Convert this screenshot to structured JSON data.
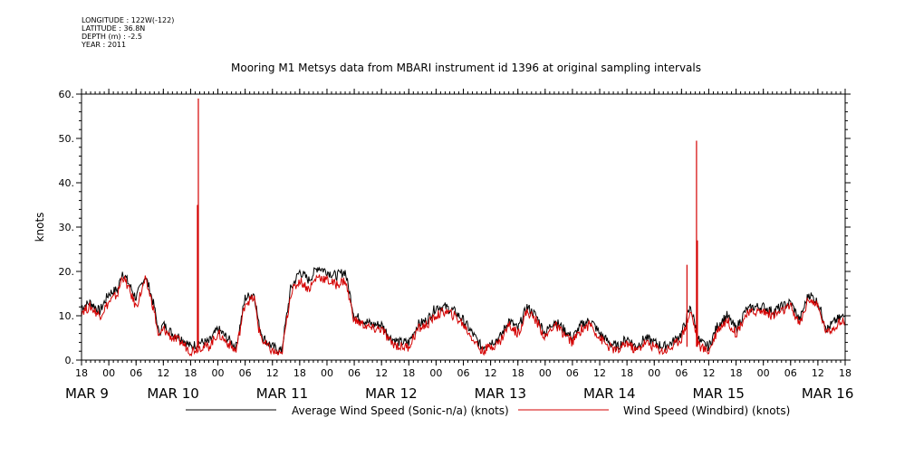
{
  "metadata": {
    "longitude": "LONGITUDE : 122W(-122)",
    "latitude": "LATITUDE : 36.8N",
    "depth": "DEPTH (m) : -2.5",
    "year": "YEAR : 2011"
  },
  "chart_data": {
    "type": "line",
    "title": "Mooring M1 Metsys data from MBARI instrument id 1396 at original sampling intervals",
    "ylabel": "knots",
    "xlabel": "",
    "ylim": [
      0,
      60
    ],
    "yticks": [
      0,
      10,
      20,
      30,
      40,
      50,
      60
    ],
    "xlim_hours": [
      0,
      168
    ],
    "x_tick_labels": [
      "18",
      "00",
      "06",
      "12",
      "18",
      "00",
      "06",
      "12",
      "18",
      "00",
      "06",
      "12",
      "18",
      "00",
      "06",
      "12",
      "18",
      "00",
      "06",
      "12",
      "18",
      "00",
      "06",
      "12",
      "18",
      "00",
      "06",
      "12",
      "18"
    ],
    "day_labels": [
      {
        "text": "MAR  9",
        "hour": 0
      },
      {
        "text": "MAR 10",
        "hour": 18
      },
      {
        "text": "MAR 11",
        "hour": 42
      },
      {
        "text": "MAR 12",
        "hour": 66
      },
      {
        "text": "MAR 13",
        "hour": 90
      },
      {
        "text": "MAR 14",
        "hour": 114
      },
      {
        "text": "MAR 15",
        "hour": 138
      },
      {
        "text": "MAR 16",
        "hour": 162
      }
    ],
    "grid": false,
    "series": [
      {
        "name": "Average Wind Speed (Sonic-n/a) (knots)",
        "color": "#000000",
        "hours": [
          0,
          2,
          4,
          6,
          8,
          9,
          10,
          12,
          14,
          15,
          16,
          17,
          18,
          20,
          22,
          24,
          26,
          28,
          30,
          32,
          34,
          36,
          38,
          39,
          40,
          42,
          44,
          46,
          48,
          49,
          50,
          52,
          54,
          56,
          58,
          60,
          62,
          64,
          66,
          68,
          70,
          72,
          74,
          76,
          78,
          80,
          82,
          84,
          86,
          88,
          90,
          92,
          94,
          96,
          98,
          100,
          102,
          104,
          106,
          108,
          110,
          112,
          114,
          116,
          118,
          120,
          122,
          124,
          126,
          128,
          130,
          132,
          134,
          136,
          138,
          140,
          142,
          144,
          146,
          148,
          150,
          152,
          154,
          156,
          158,
          160,
          162,
          164,
          166,
          168
        ],
        "values": [
          12,
          13,
          11,
          15,
          16,
          20,
          18,
          14,
          19,
          16,
          12,
          6,
          8,
          6,
          5,
          3,
          4,
          4,
          7,
          5,
          3,
          14,
          15,
          8,
          5,
          3,
          2,
          16,
          20,
          19,
          18,
          21,
          20,
          19,
          20,
          10,
          9,
          8,
          8,
          5,
          4,
          4,
          8,
          9,
          12,
          12,
          11,
          9,
          6,
          3,
          4,
          5,
          9,
          7,
          12,
          10,
          6,
          9,
          7,
          5,
          8,
          9,
          6,
          4,
          3,
          5,
          3,
          5,
          4,
          3,
          4,
          6,
          12,
          4,
          3,
          8,
          10,
          7,
          11,
          12,
          12,
          11,
          12,
          13,
          9,
          15,
          13,
          7,
          9,
          10
        ]
      },
      {
        "name": "Wind Speed (Windbird) (knots)",
        "color": "#d40000",
        "hours": [
          0,
          2,
          4,
          6,
          8,
          9,
          10,
          12,
          14,
          15,
          16,
          17,
          18,
          20,
          22,
          24,
          26,
          28,
          30,
          32,
          34,
          36,
          38,
          39,
          40,
          42,
          44,
          46,
          48,
          49,
          50,
          52,
          54,
          56,
          58,
          60,
          62,
          64,
          66,
          68,
          70,
          72,
          74,
          76,
          78,
          80,
          82,
          84,
          86,
          88,
          90,
          92,
          94,
          96,
          98,
          100,
          102,
          104,
          106,
          108,
          110,
          112,
          114,
          116,
          118,
          120,
          122,
          124,
          126,
          128,
          130,
          132,
          134,
          136,
          138,
          140,
          142,
          144,
          146,
          148,
          150,
          152,
          154,
          156,
          158,
          160,
          162,
          164,
          166,
          168
        ],
        "values": [
          11,
          12,
          10,
          13,
          15,
          19,
          17,
          12,
          18,
          15,
          11,
          5,
          7,
          5,
          4,
          2,
          3,
          3,
          6,
          4,
          2,
          13,
          14,
          7,
          4,
          2,
          1,
          15,
          18,
          17,
          16,
          19,
          18,
          17,
          18,
          9,
          8,
          7,
          7,
          4,
          3,
          3,
          7,
          8,
          10,
          11,
          10,
          8,
          5,
          2,
          3,
          4,
          8,
          6,
          11,
          9,
          5,
          8,
          6,
          4,
          7,
          8,
          5,
          3,
          2,
          4,
          2,
          4,
          3,
          2,
          3,
          5,
          11,
          3,
          2,
          7,
          9,
          6,
          10,
          11,
          11,
          10,
          11,
          12,
          8,
          14,
          12,
          6,
          8,
          9
        ],
        "spikes": [
          {
            "hour": 25.7,
            "value": 59
          },
          {
            "hour": 25.5,
            "value": 35
          },
          {
            "hour": 133.2,
            "value": 21.5
          },
          {
            "hour": 135.3,
            "value": 49.5
          },
          {
            "hour": 135.5,
            "value": 27
          }
        ]
      }
    ],
    "legend_position": "bottom"
  }
}
